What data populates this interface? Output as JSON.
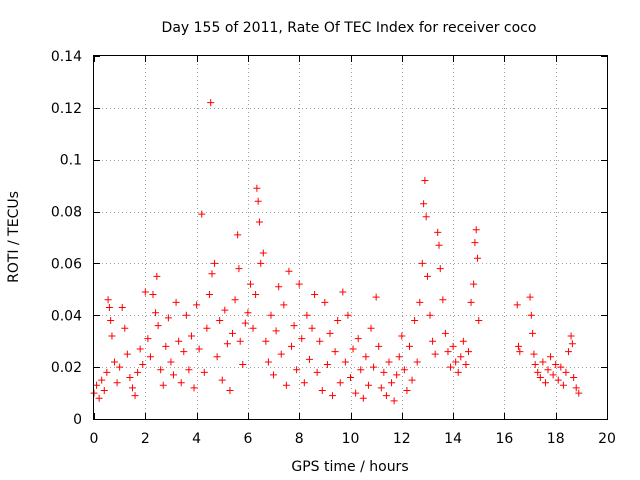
{
  "chart_data": {
    "type": "scatter",
    "title": "Day 155 of 2011, Rate Of TEC Index for receiver coco",
    "xlabel": "GPS time / hours",
    "ylabel": "ROTI / TECUs",
    "xlim": [
      0,
      20
    ],
    "ylim": [
      0,
      0.14
    ],
    "grid": true,
    "marker": "+",
    "color": "#ff0000",
    "x_ticks": [
      0,
      2,
      4,
      6,
      8,
      10,
      12,
      14,
      16,
      18,
      20
    ],
    "y_ticks": [
      0,
      0.02,
      0.04,
      0.06,
      0.08,
      0.1,
      0.12,
      0.14
    ],
    "x_tick_labels": [
      "0",
      "2",
      "4",
      "6",
      "8",
      "10",
      "12",
      "14",
      "16",
      "18",
      "20"
    ],
    "y_tick_labels": [
      "0",
      "0.02",
      "0.04",
      "0.06",
      "0.08",
      "0.1",
      "0.12",
      "0.14"
    ],
    "series": [
      {
        "name": "ROTI",
        "points": [
          [
            0.0,
            0.01
          ],
          [
            0.1,
            0.013
          ],
          [
            0.2,
            0.008
          ],
          [
            0.3,
            0.015
          ],
          [
            0.4,
            0.011
          ],
          [
            0.5,
            0.018
          ],
          [
            0.55,
            0.046
          ],
          [
            0.6,
            0.043
          ],
          [
            0.65,
            0.038
          ],
          [
            0.7,
            0.032
          ],
          [
            0.8,
            0.022
          ],
          [
            0.9,
            0.014
          ],
          [
            1.0,
            0.02
          ],
          [
            1.1,
            0.043
          ],
          [
            1.2,
            0.035
          ],
          [
            1.3,
            0.025
          ],
          [
            1.4,
            0.016
          ],
          [
            1.5,
            0.012
          ],
          [
            1.6,
            0.009
          ],
          [
            1.7,
            0.018
          ],
          [
            1.8,
            0.027
          ],
          [
            1.9,
            0.021
          ],
          [
            2.0,
            0.049
          ],
          [
            2.1,
            0.031
          ],
          [
            2.2,
            0.024
          ],
          [
            2.3,
            0.048
          ],
          [
            2.4,
            0.041
          ],
          [
            2.45,
            0.055
          ],
          [
            2.5,
            0.036
          ],
          [
            2.6,
            0.019
          ],
          [
            2.7,
            0.013
          ],
          [
            2.8,
            0.028
          ],
          [
            2.9,
            0.039
          ],
          [
            3.0,
            0.022
          ],
          [
            3.1,
            0.017
          ],
          [
            3.2,
            0.045
          ],
          [
            3.3,
            0.03
          ],
          [
            3.4,
            0.014
          ],
          [
            3.5,
            0.026
          ],
          [
            3.6,
            0.04
          ],
          [
            3.7,
            0.019
          ],
          [
            3.8,
            0.032
          ],
          [
            3.9,
            0.012
          ],
          [
            4.0,
            0.044
          ],
          [
            4.1,
            0.027
          ],
          [
            4.2,
            0.079
          ],
          [
            4.3,
            0.018
          ],
          [
            4.4,
            0.035
          ],
          [
            4.5,
            0.048
          ],
          [
            4.55,
            0.122
          ],
          [
            4.6,
            0.056
          ],
          [
            4.7,
            0.06
          ],
          [
            4.8,
            0.024
          ],
          [
            4.9,
            0.038
          ],
          [
            5.0,
            0.015
          ],
          [
            5.1,
            0.042
          ],
          [
            5.2,
            0.029
          ],
          [
            5.3,
            0.011
          ],
          [
            5.4,
            0.033
          ],
          [
            5.5,
            0.046
          ],
          [
            5.6,
            0.071
          ],
          [
            5.65,
            0.058
          ],
          [
            5.7,
            0.03
          ],
          [
            5.8,
            0.021
          ],
          [
            5.9,
            0.037
          ],
          [
            6.0,
            0.041
          ],
          [
            6.1,
            0.052
          ],
          [
            6.2,
            0.035
          ],
          [
            6.3,
            0.048
          ],
          [
            6.35,
            0.089
          ],
          [
            6.4,
            0.084
          ],
          [
            6.45,
            0.076
          ],
          [
            6.5,
            0.06
          ],
          [
            6.6,
            0.064
          ],
          [
            6.7,
            0.03
          ],
          [
            6.8,
            0.022
          ],
          [
            6.9,
            0.04
          ],
          [
            7.0,
            0.017
          ],
          [
            7.1,
            0.034
          ],
          [
            7.2,
            0.051
          ],
          [
            7.3,
            0.025
          ],
          [
            7.4,
            0.044
          ],
          [
            7.5,
            0.013
          ],
          [
            7.6,
            0.057
          ],
          [
            7.7,
            0.028
          ],
          [
            7.8,
            0.036
          ],
          [
            7.9,
            0.019
          ],
          [
            8.0,
            0.052
          ],
          [
            8.1,
            0.031
          ],
          [
            8.2,
            0.014
          ],
          [
            8.3,
            0.04
          ],
          [
            8.4,
            0.023
          ],
          [
            8.5,
            0.035
          ],
          [
            8.6,
            0.048
          ],
          [
            8.7,
            0.018
          ],
          [
            8.8,
            0.03
          ],
          [
            8.9,
            0.011
          ],
          [
            9.0,
            0.045
          ],
          [
            9.1,
            0.021
          ],
          [
            9.2,
            0.033
          ],
          [
            9.3,
            0.009
          ],
          [
            9.4,
            0.026
          ],
          [
            9.5,
            0.038
          ],
          [
            9.6,
            0.014
          ],
          [
            9.7,
            0.049
          ],
          [
            9.8,
            0.022
          ],
          [
            9.9,
            0.04
          ],
          [
            10.0,
            0.016
          ],
          [
            10.1,
            0.027
          ],
          [
            10.2,
            0.01
          ],
          [
            10.3,
            0.031
          ],
          [
            10.4,
            0.019
          ],
          [
            10.5,
            0.008
          ],
          [
            10.6,
            0.024
          ],
          [
            10.7,
            0.013
          ],
          [
            10.8,
            0.035
          ],
          [
            10.9,
            0.02
          ],
          [
            11.0,
            0.047
          ],
          [
            11.1,
            0.028
          ],
          [
            11.2,
            0.012
          ],
          [
            11.3,
            0.018
          ],
          [
            11.4,
            0.009
          ],
          [
            11.5,
            0.022
          ],
          [
            11.6,
            0.014
          ],
          [
            11.7,
            0.007
          ],
          [
            11.8,
            0.017
          ],
          [
            11.9,
            0.024
          ],
          [
            12.0,
            0.032
          ],
          [
            12.1,
            0.019
          ],
          [
            12.2,
            0.011
          ],
          [
            12.3,
            0.028
          ],
          [
            12.4,
            0.015
          ],
          [
            12.5,
            0.038
          ],
          [
            12.6,
            0.022
          ],
          [
            12.7,
            0.045
          ],
          [
            12.8,
            0.06
          ],
          [
            12.85,
            0.083
          ],
          [
            12.9,
            0.092
          ],
          [
            12.95,
            0.078
          ],
          [
            13.0,
            0.055
          ],
          [
            13.1,
            0.04
          ],
          [
            13.2,
            0.03
          ],
          [
            13.3,
            0.025
          ],
          [
            13.4,
            0.072
          ],
          [
            13.45,
            0.067
          ],
          [
            13.5,
            0.058
          ],
          [
            13.6,
            0.046
          ],
          [
            13.7,
            0.033
          ],
          [
            13.8,
            0.026
          ],
          [
            13.9,
            0.02
          ],
          [
            14.0,
            0.028
          ],
          [
            14.1,
            0.022
          ],
          [
            14.2,
            0.018
          ],
          [
            14.3,
            0.024
          ],
          [
            14.4,
            0.03
          ],
          [
            14.5,
            0.021
          ],
          [
            14.6,
            0.026
          ],
          [
            14.7,
            0.045
          ],
          [
            14.8,
            0.052
          ],
          [
            14.85,
            0.068
          ],
          [
            14.9,
            0.073
          ],
          [
            14.95,
            0.062
          ],
          [
            15.0,
            0.038
          ],
          [
            16.5,
            0.044
          ],
          [
            16.55,
            0.028
          ],
          [
            16.6,
            0.026
          ],
          [
            17.0,
            0.047
          ],
          [
            17.05,
            0.04
          ],
          [
            17.1,
            0.033
          ],
          [
            17.15,
            0.025
          ],
          [
            17.2,
            0.021
          ],
          [
            17.3,
            0.018
          ],
          [
            17.4,
            0.016
          ],
          [
            17.5,
            0.022
          ],
          [
            17.6,
            0.014
          ],
          [
            17.7,
            0.019
          ],
          [
            17.8,
            0.024
          ],
          [
            17.9,
            0.017
          ],
          [
            18.0,
            0.021
          ],
          [
            18.1,
            0.015
          ],
          [
            18.2,
            0.02
          ],
          [
            18.3,
            0.013
          ],
          [
            18.4,
            0.018
          ],
          [
            18.5,
            0.026
          ],
          [
            18.6,
            0.032
          ],
          [
            18.65,
            0.029
          ],
          [
            18.7,
            0.016
          ],
          [
            18.8,
            0.012
          ],
          [
            18.9,
            0.01
          ]
        ]
      }
    ]
  }
}
